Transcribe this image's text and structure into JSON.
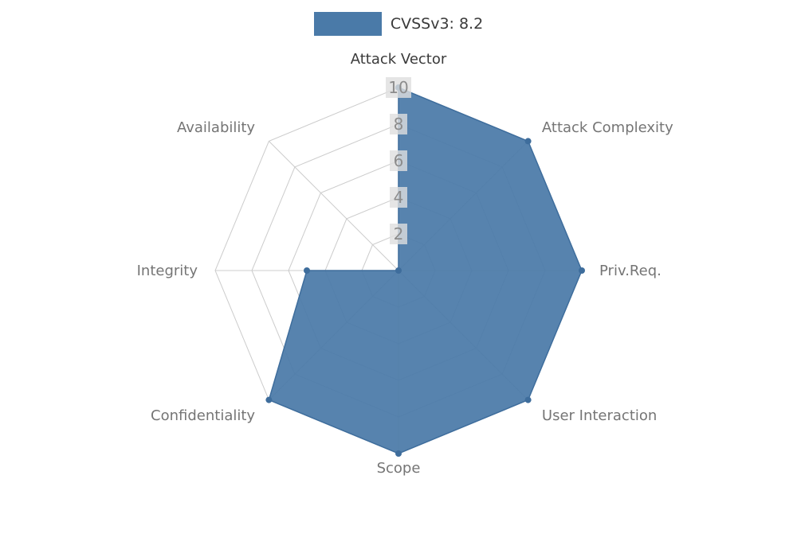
{
  "legend": {
    "label": "CVSSv3: 8.2"
  },
  "chart_data": {
    "type": "radar",
    "title": "CVSSv3: 8.2",
    "categories": [
      "Attack Vector",
      "Attack Complexity",
      "Priv.Req.",
      "User Interaction",
      "Scope",
      "Confidentiality",
      "Integrity",
      "Availability"
    ],
    "series": [
      {
        "name": "CVSSv3: 8.2",
        "values": [
          10,
          10,
          10,
          10,
          10,
          10,
          5,
          0
        ]
      }
    ],
    "ticks": [
      2,
      4,
      6,
      8,
      10
    ],
    "rlim": [
      0,
      10
    ],
    "grid": true,
    "legend_position": "top-center",
    "colors": {
      "fill": "#4a7aa8",
      "stroke": "#3e6d9c",
      "grid": "#cccccc",
      "tick_label": "#8c8c8c",
      "tick_label_bg": "#dedede",
      "axis_label": "#757575",
      "axis_label_primary": "#3a3a3a",
      "title": "#3a3a3a"
    }
  }
}
